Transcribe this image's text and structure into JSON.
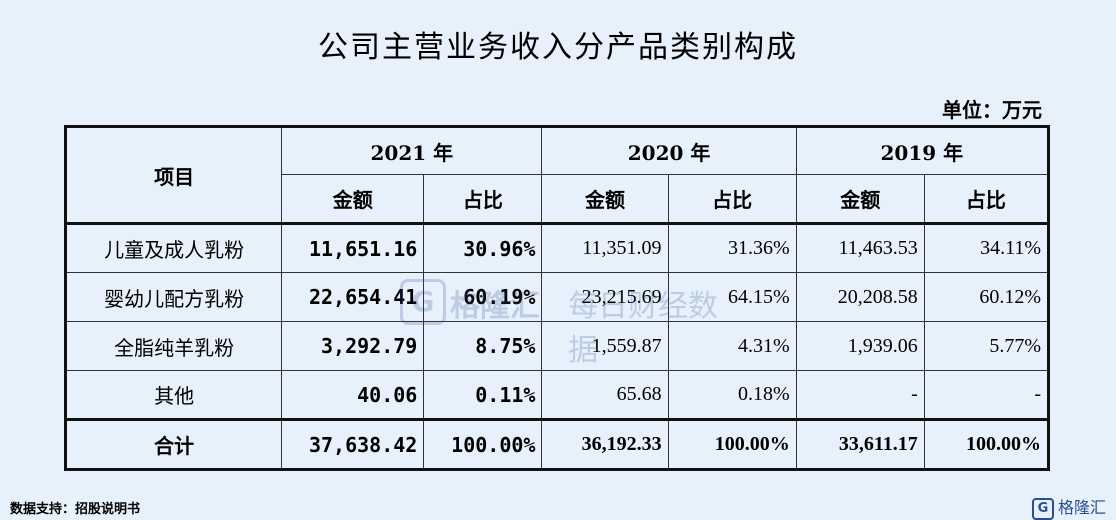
{
  "title": "公司主营业务收入分产品类别构成",
  "unit": "单位：万元",
  "header": {
    "item": "项目",
    "years": [
      "2021 年",
      "2020 年",
      "2019 年"
    ],
    "amount": "金额",
    "ratio": "占比"
  },
  "rows": [
    {
      "name": "儿童及成人乳粉",
      "a2021": "11,651.16",
      "r2021": "30.96%",
      "a2020": "11,351.09",
      "r2020": "31.36%",
      "a2019": "11,463.53",
      "r2019": "34.11%"
    },
    {
      "name": "婴幼儿配方乳粉",
      "a2021": "22,654.41",
      "r2021": "60.19%",
      "a2020": "23,215.69",
      "r2020": "64.15%",
      "a2019": "20,208.58",
      "r2019": "60.12%"
    },
    {
      "name": "全脂纯羊乳粉",
      "a2021": "3,292.79",
      "r2021": "8.75%",
      "a2020": "1,559.87",
      "r2020": "4.31%",
      "a2019": "1,939.06",
      "r2019": "5.77%"
    },
    {
      "name": "其他",
      "a2021": "40.06",
      "r2021": "0.11%",
      "a2020": "65.68",
      "r2020": "0.18%",
      "a2019": "-",
      "r2019": "-"
    }
  ],
  "total": {
    "name": "合计",
    "a2021": "37,638.42",
    "r2021": "100.00%",
    "a2020": "36,192.33",
    "r2020": "100.00%",
    "a2019": "33,611.17",
    "r2019": "100.00%"
  },
  "watermark": {
    "logo": "G",
    "brand": "格隆汇",
    "text": "每日财经数据"
  },
  "source": "数据支持：招股说明书",
  "corner_brand": "格隆汇",
  "corner_logo": "G"
}
